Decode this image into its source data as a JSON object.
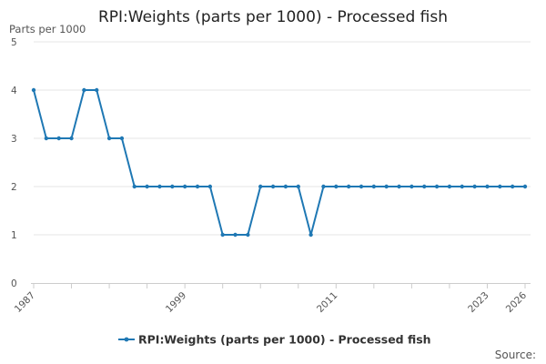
{
  "chart_data": {
    "type": "line",
    "title": "RPI:Weights (parts per 1000) - Processed fish",
    "ylabel": "Parts per 1000",
    "xlabel": "",
    "ylim": [
      0,
      5
    ],
    "yticks": [
      "0",
      "1",
      "2",
      "3",
      "4",
      "5"
    ],
    "x": [
      1987,
      1988,
      1989,
      1990,
      1991,
      1992,
      1993,
      1994,
      1995,
      1996,
      1997,
      1998,
      1999,
      2000,
      2001,
      2002,
      2003,
      2004,
      2005,
      2006,
      2007,
      2008,
      2009,
      2010,
      2011,
      2012,
      2013,
      2014,
      2015,
      2016,
      2017,
      2018,
      2019,
      2020,
      2021,
      2022,
      2023,
      2024,
      2025,
      2026
    ],
    "xtick_labels": [
      "1987",
      "1999",
      "2011",
      "2023",
      "2026"
    ],
    "series": [
      {
        "name": "RPI:Weights (parts per 1000) - Processed fish",
        "values": [
          4,
          3,
          3,
          3,
          4,
          4,
          3,
          3,
          2,
          2,
          2,
          2,
          2,
          2,
          2,
          1,
          1,
          1,
          2,
          2,
          2,
          2,
          1,
          2,
          2,
          2,
          2,
          2,
          2,
          2,
          2,
          2,
          2,
          2,
          2,
          2,
          2,
          2,
          2,
          2
        ]
      }
    ],
    "grid": true,
    "legend_position": "bottom",
    "source_label": "Source:"
  },
  "colors": {
    "series": "#1f78b4",
    "grid": "#e6e6e6",
    "axis": "#cccccc"
  }
}
